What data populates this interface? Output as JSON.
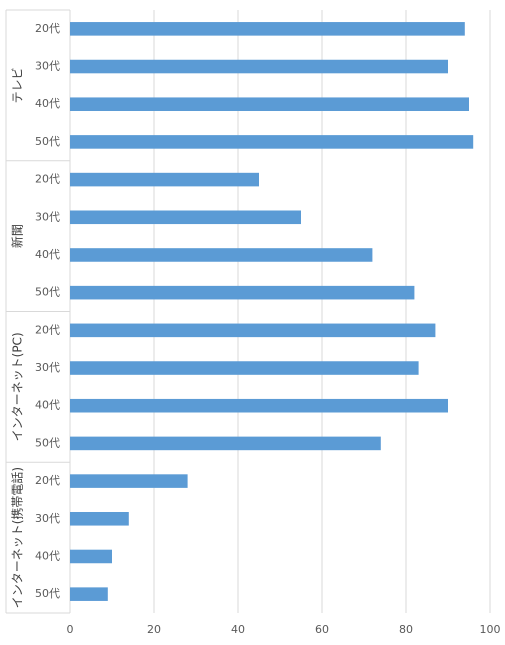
{
  "chart_data": {
    "type": "bar",
    "orientation": "horizontal",
    "groups": [
      {
        "label": "テレビ",
        "categories": [
          "20代",
          "30代",
          "40代",
          "50代"
        ],
        "values": [
          94,
          90,
          95,
          96
        ]
      },
      {
        "label": "新聞",
        "categories": [
          "20代",
          "30代",
          "40代",
          "50代"
        ],
        "values": [
          45,
          55,
          72,
          82
        ]
      },
      {
        "label": "インターネット(PC)",
        "categories": [
          "20代",
          "30代",
          "40代",
          "50代"
        ],
        "values": [
          87,
          83,
          90,
          74
        ]
      },
      {
        "label": "インターネット(携帯電話)",
        "categories": [
          "20代",
          "30代",
          "40代",
          "50代"
        ],
        "values": [
          28,
          14,
          10,
          9
        ]
      }
    ],
    "xlim": [
      0,
      100
    ],
    "xticks": [
      "0",
      "20",
      "40",
      "60",
      "80",
      "100"
    ],
    "grid": true,
    "legend": "none",
    "bar_color": "#5b9bd5"
  }
}
